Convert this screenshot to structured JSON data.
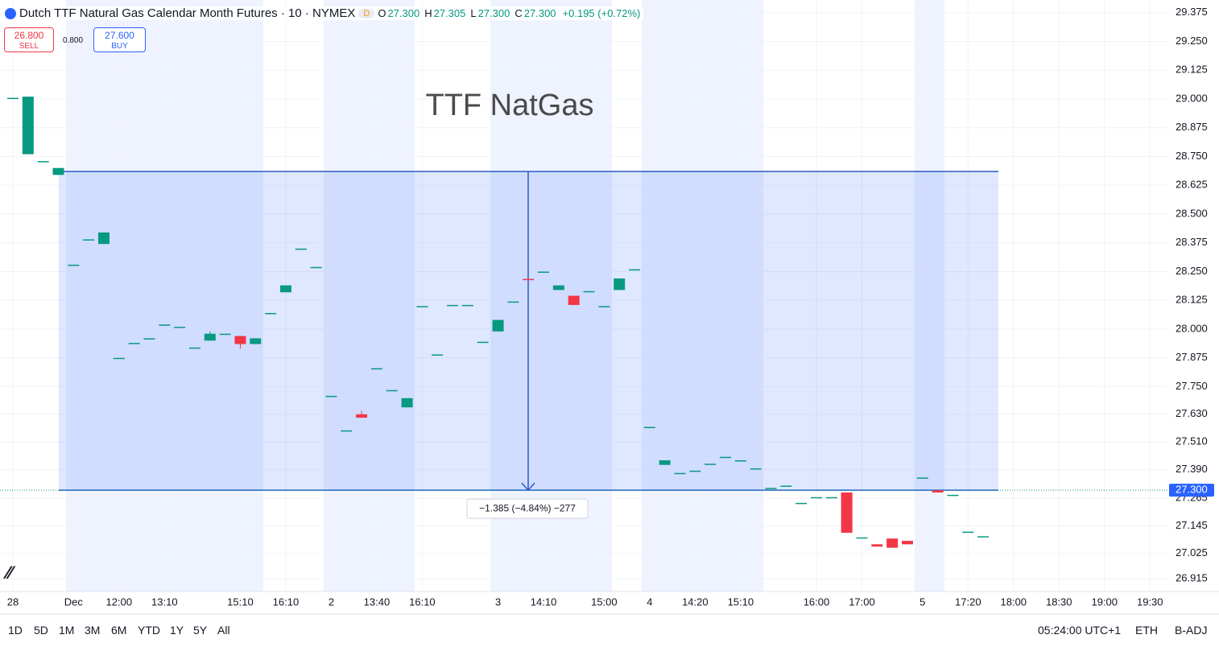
{
  "header": {
    "symbol": "Dutch TTF Natural Gas Calendar Month Futures · 10 · NYMEX",
    "badge": "D",
    "ohlc": [
      {
        "key": "O",
        "value": "27.300"
      },
      {
        "key": "H",
        "value": "27.305"
      },
      {
        "key": "L",
        "value": "27.300"
      },
      {
        "key": "C",
        "value": "27.300"
      }
    ],
    "change": "+0.195 (+0.72%)"
  },
  "trade": {
    "sell_price": "26.800",
    "sell": "SELL",
    "spread": "0.800",
    "buy_price": "27.600",
    "buy": "BUY"
  },
  "chart_data": {
    "type": "candlestick",
    "title": "TTF NatGas",
    "categories": [
      "28",
      null,
      null,
      null,
      "Dec",
      null,
      null,
      "12:00",
      null,
      null,
      "13:10",
      null,
      null,
      null,
      null,
      "15:10",
      null,
      null,
      "16:10",
      null,
      null,
      "2",
      null,
      null,
      "13:40",
      null,
      null,
      "16:10",
      null,
      null,
      null,
      null,
      "3",
      null,
      null,
      "14:10",
      null,
      null,
      null,
      "15:00",
      null,
      null,
      "4",
      null,
      null,
      "14:20",
      null,
      null,
      "15:10",
      null,
      null,
      null,
      null,
      "16:00",
      null,
      null,
      "17:00",
      null,
      null,
      null,
      "5",
      null,
      null,
      "17:20",
      null,
      null,
      "18:00",
      null,
      null,
      "18:30",
      null,
      null,
      "19:00",
      null,
      null,
      "19:30",
      null
    ],
    "open": [
      29.005,
      28.76,
      28.73,
      28.67,
      28.28,
      28.39,
      28.37,
      27.875,
      27.94,
      27.96,
      28.02,
      28.01,
      27.92,
      27.95,
      27.98,
      27.97,
      27.935,
      28.07,
      28.16,
      28.35,
      28.27,
      27.71,
      27.56,
      27.63,
      27.83,
      27.735,
      27.66,
      28.1,
      27.89,
      28.105,
      28.105,
      27.945,
      27.99,
      28.12,
      28.218,
      28.25,
      28.17,
      28.145,
      28.165,
      28.1,
      28.17,
      28.26,
      27.575,
      27.41,
      27.375,
      27.385,
      27.415,
      27.445,
      27.43,
      27.395,
      27.31,
      27.32,
      27.245,
      27.27,
      27.27,
      27.29,
      27.095,
      27.065,
      27.09,
      27.08,
      27.355,
      27.3,
      27.28,
      27.12,
      27.1,
      null,
      null,
      null,
      null,
      null,
      null,
      null,
      null,
      null,
      null,
      null,
      null
    ],
    "high": [
      29.005,
      29.01,
      28.73,
      28.7,
      28.28,
      28.39,
      28.42,
      27.875,
      27.94,
      27.96,
      28.02,
      28.01,
      27.92,
      27.99,
      27.98,
      27.97,
      27.96,
      28.07,
      28.19,
      28.35,
      28.27,
      27.71,
      27.56,
      27.645,
      27.83,
      27.735,
      27.7,
      28.1,
      27.89,
      28.105,
      28.105,
      27.945,
      28.04,
      28.12,
      28.218,
      28.25,
      28.19,
      28.145,
      28.165,
      28.1,
      28.22,
      28.26,
      27.575,
      27.43,
      27.375,
      27.385,
      27.415,
      27.445,
      27.43,
      27.395,
      27.31,
      27.32,
      27.245,
      27.27,
      27.27,
      27.29,
      27.095,
      27.065,
      27.09,
      27.08,
      27.355,
      27.3,
      27.28,
      27.12,
      27.1,
      null,
      null,
      null,
      null,
      null,
      null,
      null,
      null,
      null,
      null,
      null,
      null
    ],
    "low": [
      29.005,
      28.76,
      28.73,
      28.67,
      28.28,
      28.39,
      28.37,
      27.875,
      27.94,
      27.96,
      28.02,
      28.01,
      27.92,
      27.95,
      27.98,
      27.915,
      27.935,
      28.07,
      28.16,
      28.35,
      28.27,
      27.71,
      27.56,
      27.615,
      27.83,
      27.735,
      27.66,
      28.1,
      27.89,
      28.105,
      28.105,
      27.945,
      27.99,
      28.12,
      28.215,
      28.25,
      28.17,
      28.105,
      28.165,
      28.1,
      28.17,
      28.26,
      27.575,
      27.41,
      27.375,
      27.385,
      27.415,
      27.445,
      27.43,
      27.395,
      27.31,
      27.32,
      27.245,
      27.27,
      27.27,
      27.115,
      27.095,
      27.055,
      27.05,
      27.065,
      27.355,
      27.29,
      27.28,
      27.12,
      27.1,
      null,
      null,
      null,
      null,
      null,
      null,
      null,
      null,
      null,
      null,
      null,
      null
    ],
    "close": [
      29.005,
      29.01,
      28.73,
      28.7,
      28.28,
      28.39,
      28.42,
      27.875,
      27.94,
      27.96,
      28.02,
      28.01,
      27.92,
      27.98,
      27.98,
      27.935,
      27.96,
      28.07,
      28.19,
      28.35,
      28.27,
      27.71,
      27.56,
      27.615,
      27.83,
      27.735,
      27.7,
      28.1,
      27.89,
      28.105,
      28.105,
      27.945,
      28.04,
      28.12,
      28.215,
      28.25,
      28.19,
      28.105,
      28.165,
      28.1,
      28.22,
      28.26,
      27.575,
      27.43,
      27.375,
      27.385,
      27.415,
      27.445,
      27.43,
      27.395,
      27.31,
      27.32,
      27.245,
      27.27,
      27.27,
      27.115,
      27.095,
      27.055,
      27.05,
      27.065,
      27.355,
      27.29,
      27.28,
      27.12,
      27.1,
      null,
      null,
      null,
      null,
      null,
      null,
      null,
      null,
      null,
      null,
      null,
      null
    ],
    "up_color": "#089981",
    "down_color": "#f23645",
    "ylim": [
      26.86,
      29.43
    ],
    "yticks": [
      29.375,
      {
        "value": 29.25,
        "label": "29.250"
      },
      29.125,
      {
        "value": 29,
        "label": "29.000"
      },
      28.875,
      {
        "value": 28.75,
        "label": "28.750"
      },
      28.625,
      {
        "value": 28.5,
        "label": "28.500"
      },
      28.375,
      {
        "value": 28.25,
        "label": "28.250"
      },
      28.125,
      {
        "value": 28,
        "label": "28.000"
      },
      27.875,
      {
        "value": 27.75,
        "label": "27.750"
      },
      {
        "value": 27.63,
        "label": "27.630"
      },
      {
        "value": 27.51,
        "label": "27.510"
      },
      {
        "value": 27.39,
        "label": "27.390"
      },
      27.265,
      27.145,
      27.025,
      26.915
    ],
    "grid": true,
    "last_price": {
      "value": 27.3,
      "label": "27.300"
    },
    "measure": {
      "from": 28.685,
      "to": 27.3,
      "label": "−1.385 (−4.84%) −277"
    }
  },
  "toolbar": {
    "ranges": [
      "1D",
      "5D",
      "1M",
      "3M",
      "6M",
      "YTD",
      "1Y",
      "5Y",
      "All"
    ],
    "time": "05:24:00 UTC+1",
    "session": "ETH",
    "adjust": "B-ADJ"
  }
}
